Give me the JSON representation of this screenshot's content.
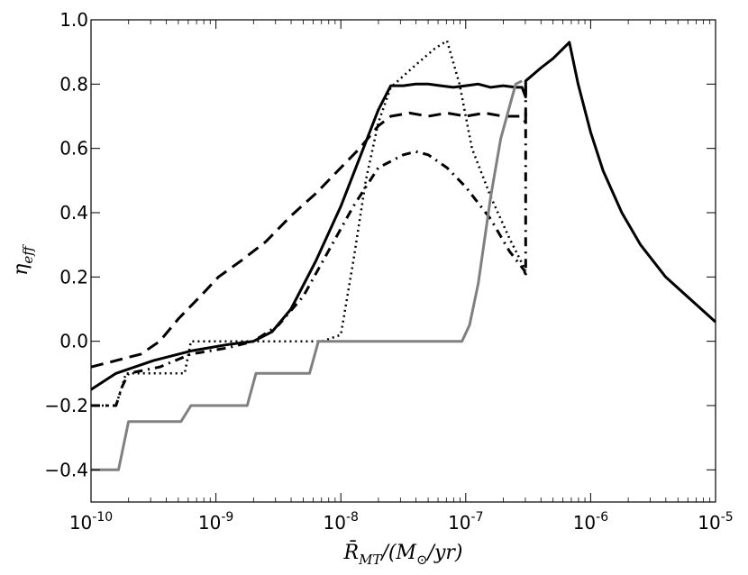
{
  "chart_data": {
    "type": "line",
    "title": "",
    "xlabel": "R̄_MT/(M_⊙/yr)",
    "xlabel_parts": {
      "symbol": "R̄",
      "subscript": "MT",
      "rest_open": "/(M",
      "sub2": "⊙",
      "rest_close": "/yr)"
    },
    "ylabel": "η_eff",
    "ylabel_parts": {
      "symbol": "η",
      "subscript": "eff"
    },
    "x_scale": "log",
    "xlim": [
      1e-10,
      1e-05
    ],
    "ylim": [
      -0.5,
      1.0
    ],
    "grid": false,
    "legend": "none",
    "x_ticks": [
      {
        "value": 1e-10,
        "base": "10",
        "exp": "-10"
      },
      {
        "value": 1e-09,
        "base": "10",
        "exp": "-9"
      },
      {
        "value": 1e-08,
        "base": "10",
        "exp": "-8"
      },
      {
        "value": 1e-07,
        "base": "10",
        "exp": "-7"
      },
      {
        "value": 1e-06,
        "base": "10",
        "exp": "-6"
      },
      {
        "value": 1e-05,
        "base": "10",
        "exp": "-5"
      }
    ],
    "y_ticks": [
      {
        "value": -0.4,
        "label": "−0.4"
      },
      {
        "value": -0.2,
        "label": "−0.2"
      },
      {
        "value": 0.0,
        "label": "0.0"
      },
      {
        "value": 0.2,
        "label": "0.2"
      },
      {
        "value": 0.4,
        "label": "0.4"
      },
      {
        "value": 0.6,
        "label": "0.6"
      },
      {
        "value": 0.8,
        "label": "0.8"
      },
      {
        "value": 1.0,
        "label": "1.0"
      }
    ],
    "series": [
      {
        "name": "solid-black",
        "color": "#000000",
        "dash": "",
        "points": [
          [
            -10,
            -0.15
          ],
          [
            -9.8,
            -0.1
          ],
          [
            -9.5,
            -0.06
          ],
          [
            -9.2,
            -0.03
          ],
          [
            -8.9,
            -0.01
          ],
          [
            -8.7,
            0.0
          ],
          [
            -8.55,
            0.03
          ],
          [
            -8.4,
            0.1
          ],
          [
            -8.2,
            0.25
          ],
          [
            -8.0,
            0.42
          ],
          [
            -7.85,
            0.57
          ],
          [
            -7.7,
            0.72
          ],
          [
            -7.6,
            0.795
          ],
          [
            -7.5,
            0.795
          ],
          [
            -7.4,
            0.8
          ],
          [
            -7.3,
            0.8
          ],
          [
            -7.2,
            0.795
          ],
          [
            -7.1,
            0.79
          ],
          [
            -7.0,
            0.795
          ],
          [
            -6.9,
            0.8
          ],
          [
            -6.8,
            0.79
          ],
          [
            -6.7,
            0.795
          ],
          [
            -6.6,
            0.79
          ],
          [
            -6.55,
            0.79
          ],
          [
            -6.52,
            0.76
          ],
          [
            -6.52,
            0.81
          ],
          [
            -6.4,
            0.85
          ],
          [
            -6.3,
            0.88
          ],
          [
            -6.17,
            0.93
          ],
          [
            -6.1,
            0.8
          ],
          [
            -6.0,
            0.65
          ],
          [
            -5.9,
            0.53
          ],
          [
            -5.75,
            0.4
          ],
          [
            -5.6,
            0.3
          ],
          [
            -5.4,
            0.2
          ],
          [
            -5.2,
            0.13
          ],
          [
            -5.0,
            0.06
          ]
        ]
      },
      {
        "name": "dashed-black",
        "color": "#000000",
        "dash": "14,8",
        "points": [
          [
            -10,
            -0.08
          ],
          [
            -9.8,
            -0.06
          ],
          [
            -9.6,
            -0.04
          ],
          [
            -9.45,
            0.0
          ],
          [
            -9.3,
            0.07
          ],
          [
            -9.1,
            0.15
          ],
          [
            -8.98,
            0.2
          ],
          [
            -8.8,
            0.25
          ],
          [
            -8.6,
            0.31
          ],
          [
            -8.4,
            0.39
          ],
          [
            -8.2,
            0.46
          ],
          [
            -8.0,
            0.54
          ],
          [
            -7.85,
            0.6
          ],
          [
            -7.7,
            0.67
          ],
          [
            -7.6,
            0.7
          ],
          [
            -7.45,
            0.71
          ],
          [
            -7.3,
            0.7
          ],
          [
            -7.15,
            0.71
          ],
          [
            -7.0,
            0.7
          ],
          [
            -6.85,
            0.71
          ],
          [
            -6.7,
            0.7
          ],
          [
            -6.55,
            0.7
          ],
          [
            -6.52,
            0.68
          ],
          [
            -6.52,
            0.73
          ]
        ]
      },
      {
        "name": "dashdot-black",
        "color": "#000000",
        "dash": "10,6,2,6",
        "points": [
          [
            -10,
            -0.2
          ],
          [
            -9.8,
            -0.2
          ],
          [
            -9.75,
            -0.14
          ],
          [
            -9.7,
            -0.1
          ],
          [
            -9.45,
            -0.08
          ],
          [
            -9.2,
            -0.04
          ],
          [
            -8.9,
            -0.02
          ],
          [
            -8.7,
            0.0
          ],
          [
            -8.5,
            0.05
          ],
          [
            -8.3,
            0.14
          ],
          [
            -8.1,
            0.28
          ],
          [
            -7.9,
            0.42
          ],
          [
            -7.7,
            0.54
          ],
          [
            -7.5,
            0.58
          ],
          [
            -7.4,
            0.59
          ],
          [
            -7.3,
            0.58
          ],
          [
            -7.15,
            0.54
          ],
          [
            -7.0,
            0.48
          ],
          [
            -6.8,
            0.38
          ],
          [
            -6.65,
            0.28
          ],
          [
            -6.53,
            0.22
          ],
          [
            -6.52,
            0.2
          ],
          [
            -6.52,
            0.8
          ]
        ]
      },
      {
        "name": "dotted-black",
        "color": "#000000",
        "dash": "2,4",
        "points": [
          [
            -10,
            -0.2
          ],
          [
            -9.8,
            -0.2
          ],
          [
            -9.72,
            -0.1
          ],
          [
            -9.25,
            -0.1
          ],
          [
            -9.2,
            0.0
          ],
          [
            -8.15,
            0.0
          ],
          [
            -8.0,
            0.02
          ],
          [
            -7.9,
            0.25
          ],
          [
            -7.8,
            0.5
          ],
          [
            -7.7,
            0.68
          ],
          [
            -7.6,
            0.79
          ],
          [
            -7.4,
            0.86
          ],
          [
            -7.25,
            0.91
          ],
          [
            -7.15,
            0.935
          ],
          [
            -7.05,
            0.8
          ],
          [
            -6.95,
            0.6
          ],
          [
            -6.8,
            0.45
          ],
          [
            -6.65,
            0.32
          ],
          [
            -6.52,
            0.22
          ]
        ]
      },
      {
        "name": "solid-gray",
        "color": "#808080",
        "dash": "",
        "points": [
          [
            -10,
            -0.4
          ],
          [
            -9.78,
            -0.4
          ],
          [
            -9.7,
            -0.25
          ],
          [
            -9.28,
            -0.25
          ],
          [
            -9.2,
            -0.2
          ],
          [
            -8.75,
            -0.2
          ],
          [
            -8.68,
            -0.1
          ],
          [
            -8.25,
            -0.1
          ],
          [
            -8.18,
            0.0
          ],
          [
            -7.03,
            0.0
          ],
          [
            -6.97,
            0.05
          ],
          [
            -6.9,
            0.18
          ],
          [
            -6.8,
            0.45
          ],
          [
            -6.72,
            0.63
          ],
          [
            -6.6,
            0.8
          ],
          [
            -6.55,
            0.81
          ]
        ]
      }
    ]
  }
}
